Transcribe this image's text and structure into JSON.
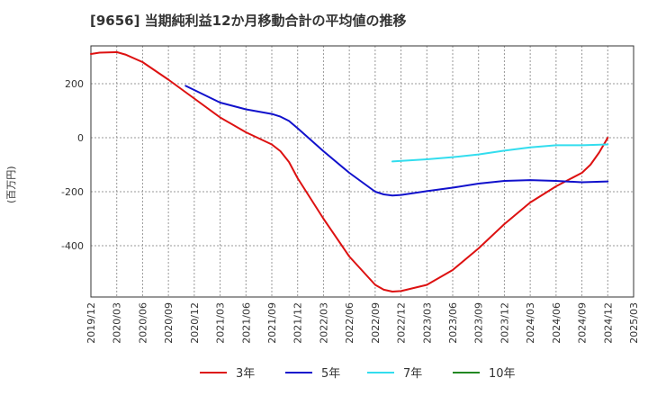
{
  "chart_data": {
    "type": "line",
    "title": "[9656]  当期純利益12か月移動合計の平均値の推移",
    "ylabel": "(百万円)",
    "xlabel": "",
    "ylim": [
      -590,
      340
    ],
    "yticks": [
      200,
      0,
      -200,
      -400
    ],
    "xticks": [
      "2019/12",
      "2020/03",
      "2020/06",
      "2020/09",
      "2020/12",
      "2021/03",
      "2021/06",
      "2021/09",
      "2021/12",
      "2022/03",
      "2022/06",
      "2022/09",
      "2022/12",
      "2023/03",
      "2023/06",
      "2023/09",
      "2023/12",
      "2024/03",
      "2024/06",
      "2024/09",
      "2024/12",
      "2025/03"
    ],
    "grid": true,
    "legend_position": "bottom",
    "series": [
      {
        "name": "3年",
        "color": "#dd1111",
        "x": [
          "2019/12",
          "2020/01",
          "2020/03",
          "2020/04",
          "2020/06",
          "2020/09",
          "2020/12",
          "2021/03",
          "2021/06",
          "2021/09",
          "2021/10",
          "2021/11",
          "2021/12",
          "2022/03",
          "2022/06",
          "2022/09",
          "2022/10",
          "2022/11",
          "2022/12",
          "2023/03",
          "2023/06",
          "2023/09",
          "2023/12",
          "2024/03",
          "2024/06",
          "2024/09",
          "2024/10",
          "2024/11",
          "2024/12"
        ],
        "values": [
          310,
          315,
          317,
          308,
          280,
          215,
          145,
          75,
          20,
          -25,
          -50,
          -90,
          -150,
          -300,
          -440,
          -545,
          -563,
          -570,
          -568,
          -545,
          -490,
          -410,
          -320,
          -240,
          -180,
          -130,
          -100,
          -55,
          0
        ]
      },
      {
        "name": "5年",
        "color": "#1111cc",
        "x": [
          "2020/11",
          "2021/03",
          "2021/06",
          "2021/09",
          "2021/10",
          "2021/11",
          "2021/12",
          "2022/03",
          "2022/06",
          "2022/09",
          "2022/10",
          "2022/11",
          "2022/12",
          "2023/03",
          "2023/06",
          "2023/09",
          "2023/12",
          "2024/03",
          "2024/06",
          "2024/09",
          "2024/12"
        ],
        "values": [
          192,
          130,
          105,
          88,
          78,
          62,
          35,
          -50,
          -130,
          -200,
          -210,
          -214,
          -212,
          -198,
          -185,
          -170,
          -160,
          -157,
          -160,
          -165,
          -162
        ]
      },
      {
        "name": "7年",
        "color": "#33ddee",
        "x": [
          "2022/11",
          "2023/03",
          "2023/06",
          "2023/09",
          "2023/12",
          "2024/03",
          "2024/06",
          "2024/09",
          "2024/12"
        ],
        "values": [
          -88,
          -80,
          -72,
          -62,
          -48,
          -36,
          -28,
          -28,
          -25
        ]
      },
      {
        "name": "10年",
        "color": "#228822",
        "x": [],
        "values": []
      }
    ]
  }
}
